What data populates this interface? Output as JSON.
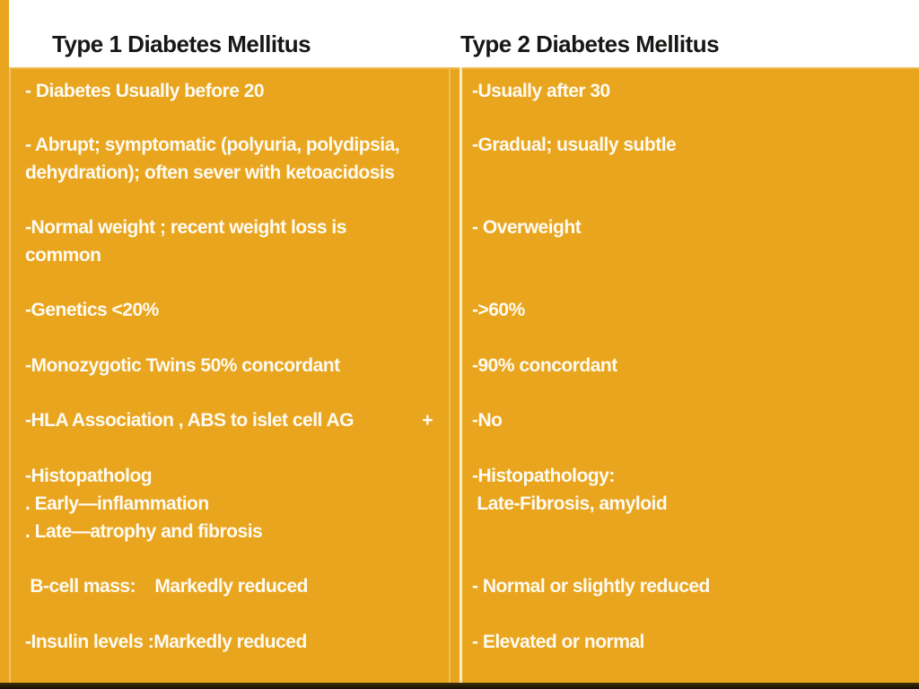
{
  "slide": {
    "header": {
      "left_title": "Type 1 Diabetes Mellitus",
      "right_title": "Type 2 Diabetes Mellitus"
    },
    "table": {
      "rows": [
        {
          "left": "- Diabetes Usually before 20",
          "right": "-Usually after 30"
        },
        {
          "left": "- Abrupt; symptomatic (polyuria, polydipsia,\ndehydration); often sever with ketoacidosis",
          "right": "-Gradual; usually subtle"
        },
        {
          "left": "-Normal weight ; recent weight loss is\ncommon",
          "right": "- Overweight"
        },
        {
          "left": "-Genetics <20%",
          "right": "->60%"
        },
        {
          "left": "-Monozygotic Twins 50% concordant",
          "right": "-90% concordant"
        },
        {
          "left": "-HLA Association , ABS to islet cell AG",
          "left_suffix": "+",
          "right": "-No"
        },
        {
          "left": "-Histopatholog\n. Early—inflammation\n. Late—atrophy and fibrosis",
          "right": "-Histopathology:\n Late-Fibrosis, amyloid"
        },
        {
          "left": " B-cell mass:    Markedly reduced",
          "right": "- Normal or slightly reduced"
        },
        {
          "left": "-Insulin levels :Markedly reduced",
          "right": "- Elevated or normal"
        }
      ]
    },
    "colors": {
      "table_background": "#E9A51E",
      "divider": "#F5ECC8",
      "title_text": "#181715",
      "body_text": "#FEFBF2",
      "bottom_bar": "#1D1502"
    }
  }
}
